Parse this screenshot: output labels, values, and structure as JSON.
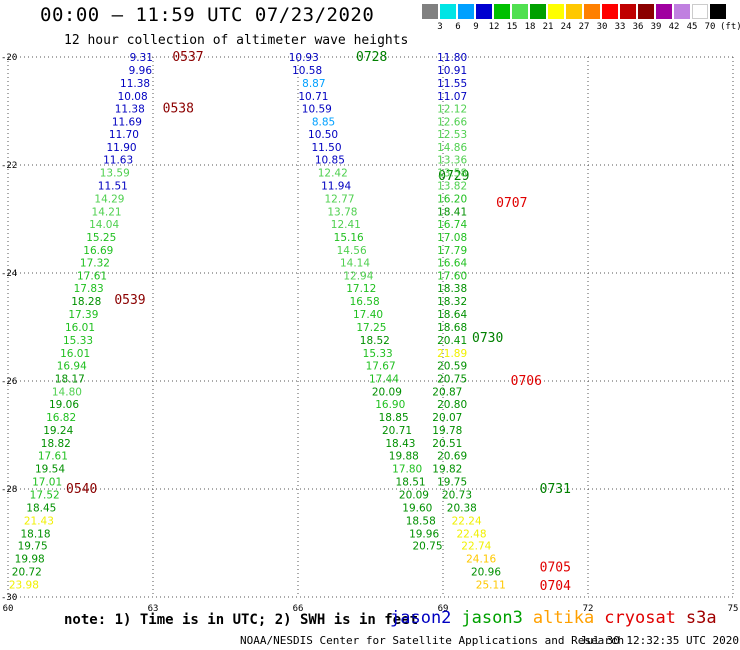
{
  "title": "00:00 – 11:59 UTC 07/23/2020",
  "subtitle": "12 hour collection of altimeter wave heights",
  "colorbar": {
    "colors": [
      "#808080",
      "#00e5e5",
      "#00a0ff",
      "#0000d0",
      "#00c000",
      "#50e050",
      "#00a000",
      "#ffff00",
      "#ffc800",
      "#ff8000",
      "#ff0000",
      "#c00000",
      "#8b0000",
      "#a000a0",
      "#c080e0",
      "#ffffff",
      "#000000"
    ],
    "labels": [
      "3",
      "6",
      "9",
      "12",
      "15",
      "18",
      "21",
      "24",
      "27",
      "30",
      "33",
      "36",
      "39",
      "42",
      "45",
      "70"
    ],
    "unit": "(ft)"
  },
  "note": "note: 1) Time is in UTC; 2) SWH is in feet",
  "legend": [
    {
      "name": "jason2",
      "color": "#0000c0"
    },
    {
      "name": "jason3",
      "color": "#00a000"
    },
    {
      "name": "altika",
      "color": "#ffa000"
    },
    {
      "name": "cryosat",
      "color": "#e00000"
    },
    {
      "name": "s3a",
      "color": "#a00000"
    }
  ],
  "credit": "NOAA/NESDIS Center for Satellite Applications and Research",
  "timestamp": "Jul 30 12:32:35 UTC 2020",
  "chart_data": {
    "type": "scatter",
    "xlim": [
      60,
      75
    ],
    "ylim": [
      -30,
      -20
    ],
    "x_ticks": [
      "60",
      "63",
      "66",
      "69",
      "72",
      "75"
    ],
    "y_ticks": [
      "-20",
      "-22",
      "-24",
      "-26",
      "-28",
      "-30"
    ],
    "grid": true,
    "tracks": [
      {
        "satellite": "s3a",
        "time_labels": [
          {
            "text": "0537",
            "x": 63.4,
            "y": -20.0
          },
          {
            "text": "0538",
            "x": 63.2,
            "y": -20.95
          },
          {
            "text": "0539",
            "x": 62.2,
            "y": -24.5
          },
          {
            "text": "0540",
            "x": 61.2,
            "y": -28.0
          }
        ],
        "points": [
          {
            "x": 63.0,
            "y": -20.0,
            "v": "9.31"
          },
          {
            "x": 62.98,
            "y": -20.24,
            "v": "9.96"
          },
          {
            "x": 62.94,
            "y": -20.48,
            "v": "11.38"
          },
          {
            "x": 62.89,
            "y": -20.72,
            "v": "10.08"
          },
          {
            "x": 62.83,
            "y": -20.95,
            "v": "11.38"
          },
          {
            "x": 62.77,
            "y": -21.19,
            "v": "11.69"
          },
          {
            "x": 62.71,
            "y": -21.43,
            "v": "11.70"
          },
          {
            "x": 62.66,
            "y": -21.67,
            "v": "11.90"
          },
          {
            "x": 62.59,
            "y": -21.9,
            "v": "11.63"
          },
          {
            "x": 62.52,
            "y": -22.14,
            "v": "13.59"
          },
          {
            "x": 62.48,
            "y": -22.38,
            "v": "11.51"
          },
          {
            "x": 62.41,
            "y": -22.62,
            "v": "14.29"
          },
          {
            "x": 62.35,
            "y": -22.86,
            "v": "14.21"
          },
          {
            "x": 62.3,
            "y": -23.09,
            "v": "14.04"
          },
          {
            "x": 62.24,
            "y": -23.33,
            "v": "15.25"
          },
          {
            "x": 62.18,
            "y": -23.57,
            "v": "16.69"
          },
          {
            "x": 62.11,
            "y": -23.81,
            "v": "17.32"
          },
          {
            "x": 62.05,
            "y": -24.05,
            "v": "17.61"
          },
          {
            "x": 61.98,
            "y": -24.28,
            "v": "17.83"
          },
          {
            "x": 61.93,
            "y": -24.52,
            "v": "18.28"
          },
          {
            "x": 61.87,
            "y": -24.76,
            "v": "17.39"
          },
          {
            "x": 61.8,
            "y": -25.0,
            "v": "16.01"
          },
          {
            "x": 61.76,
            "y": -25.24,
            "v": "15.33"
          },
          {
            "x": 61.7,
            "y": -25.48,
            "v": "16.01"
          },
          {
            "x": 61.63,
            "y": -25.71,
            "v": "16.94"
          },
          {
            "x": 61.59,
            "y": -25.95,
            "v": "18.17"
          },
          {
            "x": 61.53,
            "y": -26.19,
            "v": "14.80"
          },
          {
            "x": 61.47,
            "y": -26.43,
            "v": "19.06"
          },
          {
            "x": 61.41,
            "y": -26.67,
            "v": "16.82"
          },
          {
            "x": 61.35,
            "y": -26.91,
            "v": "19.24"
          },
          {
            "x": 61.3,
            "y": -27.15,
            "v": "18.82"
          },
          {
            "x": 61.24,
            "y": -27.38,
            "v": "17.61"
          },
          {
            "x": 61.18,
            "y": -27.62,
            "v": "19.54"
          },
          {
            "x": 61.12,
            "y": -27.86,
            "v": "17.01"
          },
          {
            "x": 61.07,
            "y": -28.1,
            "v": "17.52"
          },
          {
            "x": 61.0,
            "y": -28.34,
            "v": "18.45"
          },
          {
            "x": 60.95,
            "y": -28.58,
            "v": "21.43"
          },
          {
            "x": 60.88,
            "y": -28.82,
            "v": "18.18"
          },
          {
            "x": 60.82,
            "y": -29.05,
            "v": "19.75"
          },
          {
            "x": 60.76,
            "y": -29.29,
            "v": "19.98"
          },
          {
            "x": 60.7,
            "y": -29.53,
            "v": "20.72"
          },
          {
            "x": 60.64,
            "y": -29.77,
            "v": "23.98"
          }
        ]
      },
      {
        "satellite": "jason3",
        "time_labels": [
          {
            "text": "0728",
            "x": 67.2,
            "y": -20.0
          },
          {
            "text": "0729",
            "x": 68.9,
            "y": -22.2
          },
          {
            "text": "0730",
            "x": 69.6,
            "y": -25.2
          },
          {
            "text": "0731",
            "x": 71.0,
            "y": -28.0
          }
        ],
        "points": [
          {
            "x": 66.43,
            "y": -20.0,
            "v": "10.93"
          },
          {
            "x": 66.5,
            "y": -20.24,
            "v": "10.58"
          },
          {
            "x": 66.57,
            "y": -20.48,
            "v": "8.87"
          },
          {
            "x": 66.63,
            "y": -20.72,
            "v": "10.71"
          },
          {
            "x": 66.7,
            "y": -20.95,
            "v": "10.59"
          },
          {
            "x": 66.77,
            "y": -21.19,
            "v": "8.85"
          },
          {
            "x": 66.83,
            "y": -21.43,
            "v": "10.50"
          },
          {
            "x": 66.9,
            "y": -21.67,
            "v": "11.50"
          },
          {
            "x": 66.97,
            "y": -21.9,
            "v": "10.85"
          },
          {
            "x": 67.03,
            "y": -22.14,
            "v": "12.42"
          },
          {
            "x": 67.1,
            "y": -22.38,
            "v": "11.94"
          },
          {
            "x": 67.17,
            "y": -22.62,
            "v": "12.77"
          },
          {
            "x": 67.23,
            "y": -22.86,
            "v": "13.78"
          },
          {
            "x": 67.3,
            "y": -23.09,
            "v": "12.41"
          },
          {
            "x": 67.36,
            "y": -23.33,
            "v": "15.16"
          },
          {
            "x": 67.42,
            "y": -23.57,
            "v": "14.56"
          },
          {
            "x": 67.49,
            "y": -23.81,
            "v": "14.14"
          },
          {
            "x": 67.56,
            "y": -24.05,
            "v": "12.94"
          },
          {
            "x": 67.62,
            "y": -24.28,
            "v": "17.12"
          },
          {
            "x": 67.69,
            "y": -24.52,
            "v": "16.58"
          },
          {
            "x": 67.76,
            "y": -24.76,
            "v": "17.40"
          },
          {
            "x": 67.83,
            "y": -25.0,
            "v": "17.25"
          },
          {
            "x": 67.9,
            "y": -25.24,
            "v": "18.52"
          },
          {
            "x": 67.96,
            "y": -25.48,
            "v": "15.33"
          },
          {
            "x": 68.02,
            "y": -25.71,
            "v": "17.67"
          },
          {
            "x": 68.09,
            "y": -25.95,
            "v": "17.44"
          },
          {
            "x": 68.15,
            "y": -26.19,
            "v": "20.09"
          },
          {
            "x": 68.22,
            "y": -26.43,
            "v": "16.90"
          },
          {
            "x": 68.29,
            "y": -26.67,
            "v": "18.85"
          },
          {
            "x": 68.36,
            "y": -26.91,
            "v": "20.71"
          },
          {
            "x": 68.43,
            "y": -27.15,
            "v": "18.43"
          },
          {
            "x": 68.5,
            "y": -27.38,
            "v": "19.88"
          },
          {
            "x": 68.57,
            "y": -27.62,
            "v": "17.80"
          },
          {
            "x": 68.64,
            "y": -27.86,
            "v": "18.51"
          },
          {
            "x": 68.71,
            "y": -28.1,
            "v": "20.09"
          },
          {
            "x": 68.78,
            "y": -28.34,
            "v": "19.60"
          },
          {
            "x": 68.85,
            "y": -28.58,
            "v": "18.58"
          },
          {
            "x": 68.92,
            "y": -28.82,
            "v": "19.96"
          },
          {
            "x": 68.99,
            "y": -29.05,
            "v": "20.75"
          }
        ]
      },
      {
        "satellite": "cryosat",
        "time_labels": [
          {
            "text": "0707",
            "x": 70.1,
            "y": -22.7
          },
          {
            "text": "0706",
            "x": 70.4,
            "y": -26.0
          },
          {
            "text": "0705",
            "x": 71.0,
            "y": -29.45
          },
          {
            "text": "0704",
            "x": 71.0,
            "y": -29.8
          }
        ],
        "points": [
          {
            "x": 69.5,
            "y": -20.0,
            "v": "11.80"
          },
          {
            "x": 69.5,
            "y": -20.24,
            "v": "10.91"
          },
          {
            "x": 69.5,
            "y": -20.48,
            "v": "11.55"
          },
          {
            "x": 69.5,
            "y": -20.72,
            "v": "11.07"
          },
          {
            "x": 69.5,
            "y": -20.95,
            "v": "12.12"
          },
          {
            "x": 69.5,
            "y": -21.19,
            "v": "12.66"
          },
          {
            "x": 69.5,
            "y": -21.43,
            "v": "12.53"
          },
          {
            "x": 69.5,
            "y": -21.67,
            "v": "14.86"
          },
          {
            "x": 69.5,
            "y": -21.9,
            "v": "13.36"
          },
          {
            "x": 69.5,
            "y": -22.14,
            "v": "13.58"
          },
          {
            "x": 69.5,
            "y": -22.38,
            "v": "13.82"
          },
          {
            "x": 69.5,
            "y": -22.62,
            "v": "16.20"
          },
          {
            "x": 69.5,
            "y": -22.86,
            "v": "18.41"
          },
          {
            "x": 69.5,
            "y": -23.09,
            "v": "16.74"
          },
          {
            "x": 69.5,
            "y": -23.33,
            "v": "17.08"
          },
          {
            "x": 69.5,
            "y": -23.57,
            "v": "17.79"
          },
          {
            "x": 69.5,
            "y": -23.81,
            "v": "16.64"
          },
          {
            "x": 69.5,
            "y": -24.05,
            "v": "17.60"
          },
          {
            "x": 69.5,
            "y": -24.28,
            "v": "18.38"
          },
          {
            "x": 69.5,
            "y": -24.52,
            "v": "18.32"
          },
          {
            "x": 69.5,
            "y": -24.76,
            "v": "18.64"
          },
          {
            "x": 69.5,
            "y": -25.0,
            "v": "18.68"
          },
          {
            "x": 69.5,
            "y": -25.24,
            "v": "20.41"
          },
          {
            "x": 69.5,
            "y": -25.48,
            "v": "21.89"
          },
          {
            "x": 69.5,
            "y": -25.71,
            "v": "20.59"
          },
          {
            "x": 69.5,
            "y": -25.95,
            "v": "20.75"
          },
          {
            "x": 69.4,
            "y": -26.19,
            "v": "20.87"
          },
          {
            "x": 69.5,
            "y": -26.43,
            "v": "20.80"
          },
          {
            "x": 69.4,
            "y": -26.67,
            "v": "20.07"
          },
          {
            "x": 69.4,
            "y": -26.91,
            "v": "19.78"
          },
          {
            "x": 69.4,
            "y": -27.15,
            "v": "20.51"
          },
          {
            "x": 69.5,
            "y": -27.38,
            "v": "20.69"
          },
          {
            "x": 69.4,
            "y": -27.62,
            "v": "19.82"
          },
          {
            "x": 69.5,
            "y": -27.86,
            "v": "19.75"
          },
          {
            "x": 69.6,
            "y": -28.1,
            "v": "20.73"
          },
          {
            "x": 69.7,
            "y": -28.34,
            "v": "20.38"
          },
          {
            "x": 69.8,
            "y": -28.58,
            "v": "22.24"
          },
          {
            "x": 69.9,
            "y": -28.82,
            "v": "22.48"
          },
          {
            "x": 70.0,
            "y": -29.05,
            "v": "22.74"
          },
          {
            "x": 70.1,
            "y": -29.29,
            "v": "24.16"
          },
          {
            "x": 70.2,
            "y": -29.53,
            "v": "20.96"
          },
          {
            "x": 70.3,
            "y": -29.77,
            "v": "25.11"
          }
        ]
      }
    ]
  }
}
